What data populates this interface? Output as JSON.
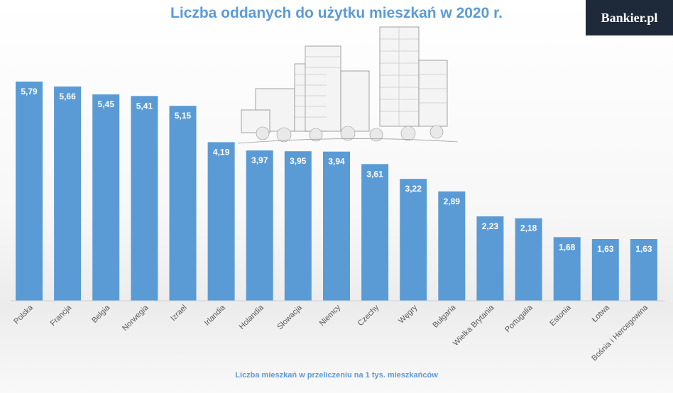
{
  "header": {
    "title": "Liczba oddanych do użytku mieszkań w 2020 r.",
    "logo_text": "Bankier.pl"
  },
  "colors": {
    "bar": "#5b9bd5",
    "title": "#5b9bd5",
    "logo_bg": "#1e2a3a",
    "value_label": "#ffffff"
  },
  "chart_data": {
    "type": "bar",
    "title": "Liczba oddanych do użytku mieszkań w 2020 r.",
    "xlabel": "Liczba mieszkań w przeliczeniu na 1 tys. mieszkańców",
    "ylabel": "",
    "ylim": [
      0,
      5.79
    ],
    "grid": false,
    "categories": [
      "Polska",
      "Francja",
      "Belgia",
      "Norwegia",
      "Izrael",
      "Irlandia",
      "Holandia",
      "Słowacja",
      "Niemcy",
      "Czechy",
      "Węgry",
      "Bułgaria",
      "Wielka Brytania",
      "Portugalia",
      "Estonia",
      "Łotwa",
      "Bośnia i Hercegowina"
    ],
    "values": [
      5.79,
      5.66,
      5.45,
      5.41,
      5.15,
      4.19,
      3.97,
      3.95,
      3.94,
      3.61,
      3.22,
      2.89,
      2.23,
      2.18,
      1.68,
      1.63,
      1.63
    ],
    "value_labels": [
      "5,79",
      "5,66",
      "5,45",
      "5,41",
      "5,15",
      "4,19",
      "3,97",
      "3,95",
      "3,94",
      "3,61",
      "3,22",
      "2,89",
      "2,23",
      "2,18",
      "1,68",
      "1,63",
      "1,63"
    ]
  }
}
